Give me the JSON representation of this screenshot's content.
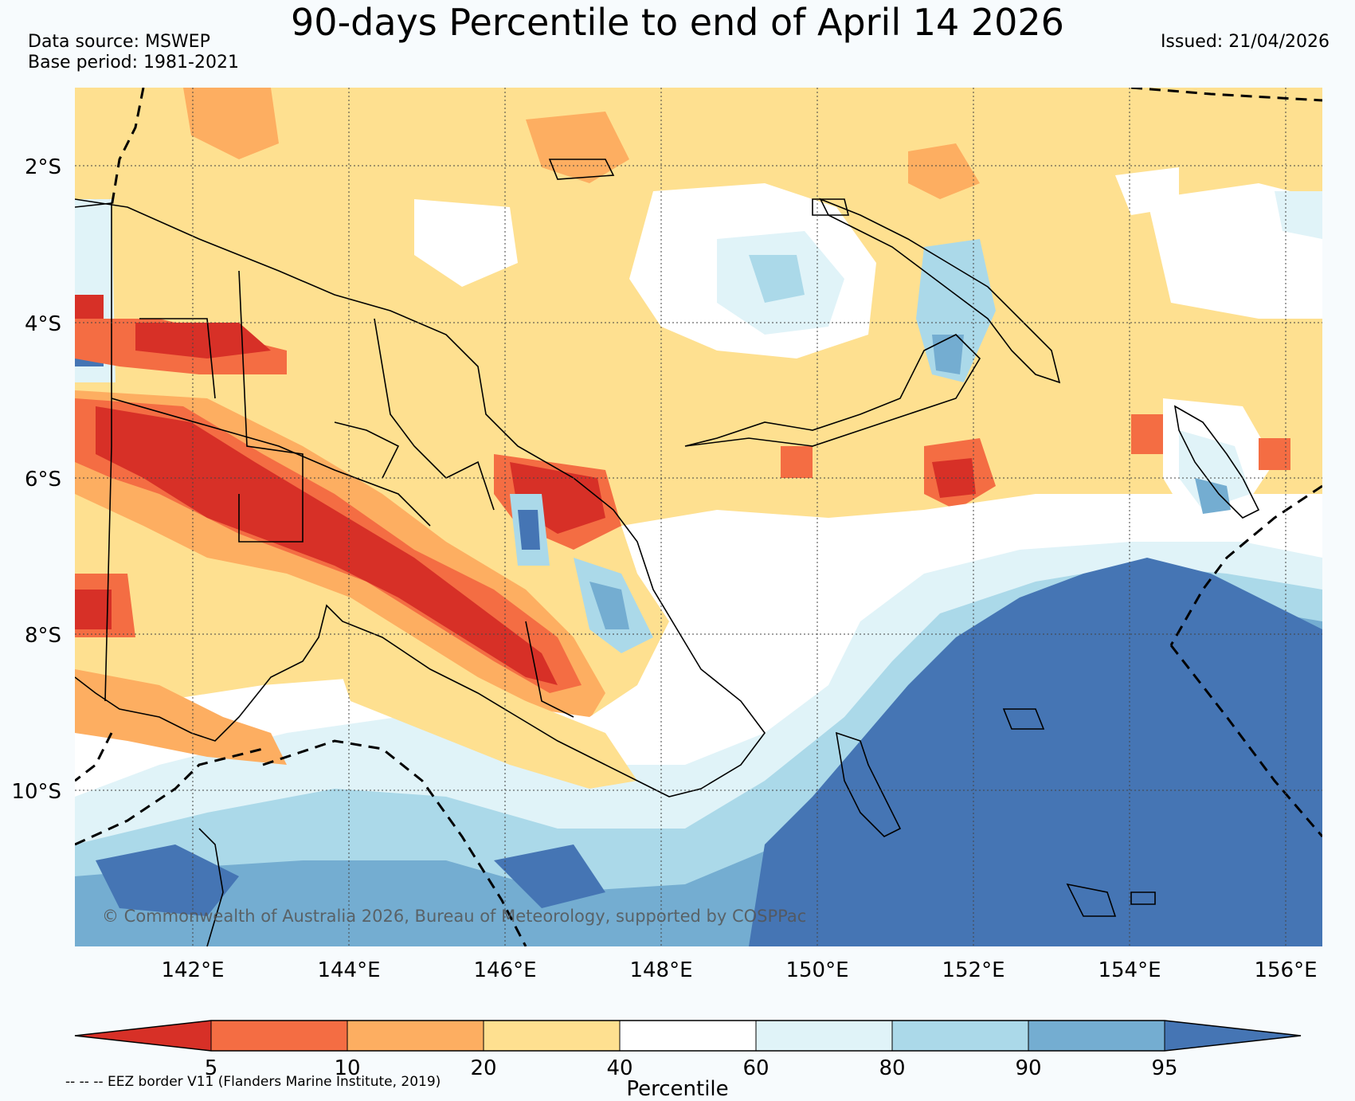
{
  "header": {
    "title": "90-days Percentile to end of April 14 2026",
    "source_line1": "Data source: MSWEP",
    "source_line2": "Base period: 1981-2021",
    "issued": "Issued: 21/04/2026"
  },
  "map": {
    "lat_labels": [
      "2°S",
      "4°S",
      "6°S",
      "8°S",
      "10°S"
    ],
    "lon_labels": [
      "142°E",
      "144°E",
      "146°E",
      "148°E",
      "150°E",
      "152°E",
      "154°E",
      "156°E"
    ],
    "credit": "© Commonwealth of Australia 2026, Bureau of Meteorology, supported by COSPPac",
    "eez_note": "-- -- -- EEZ border V11 (Flanders Marine Institute, 2019)"
  },
  "colorbar": {
    "title": "Percentile",
    "ticks": [
      "5",
      "10",
      "20",
      "40",
      "60",
      "80",
      "90",
      "95"
    ],
    "colors": [
      "#d73027",
      "#f46d43",
      "#fdae61",
      "#fee090",
      "#ffffff",
      "#e0f3f8",
      "#abd9e9",
      "#74add1",
      "#4575b4"
    ]
  }
}
